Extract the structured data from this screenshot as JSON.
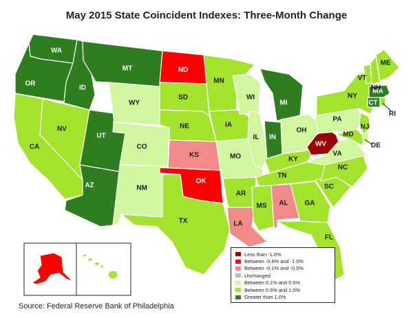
{
  "title": "May 2015 State Coincident Indexes: Three-Month Change",
  "source": "Source: Federal Reserve Bank of Philadelphia",
  "legend": [
    {
      "key": "lt_m1",
      "label": "Less than -1.0%",
      "color": "#9b0000"
    },
    {
      "key": "m06_m1",
      "label": "Between -0.6% and -1.0%",
      "color": "#ff0000"
    },
    {
      "key": "m01_m05",
      "label": "Between -0.1% and -0.5%",
      "color": "#f28a8a"
    },
    {
      "key": "unch",
      "label": "Unchanged",
      "color": "#bdbdbd"
    },
    {
      "key": "p01_p05",
      "label": "Between 0.1% and 0.5%",
      "color": "#d2f5a0"
    },
    {
      "key": "p06_p1",
      "label": "Between 0.6% and 1.0%",
      "color": "#a3e22d"
    },
    {
      "key": "gt_p1",
      "label": "Greater than 1.0%",
      "color": "#2e7d1f"
    }
  ],
  "states": [
    {
      "abbr": "WA",
      "category": "gt_p1"
    },
    {
      "abbr": "OR",
      "category": "gt_p1"
    },
    {
      "abbr": "ID",
      "category": "gt_p1"
    },
    {
      "abbr": "MT",
      "category": "gt_p1"
    },
    {
      "abbr": "UT",
      "category": "gt_p1"
    },
    {
      "abbr": "AZ",
      "category": "gt_p1"
    },
    {
      "abbr": "MI",
      "category": "gt_p1"
    },
    {
      "abbr": "IN",
      "category": "gt_p1"
    },
    {
      "abbr": "MA",
      "category": "gt_p1"
    },
    {
      "abbr": "CT",
      "category": "gt_p1"
    },
    {
      "abbr": "CA",
      "category": "p06_p1"
    },
    {
      "abbr": "NV",
      "category": "p06_p1"
    },
    {
      "abbr": "SD",
      "category": "p06_p1"
    },
    {
      "abbr": "NE",
      "category": "p06_p1"
    },
    {
      "abbr": "MN",
      "category": "p06_p1"
    },
    {
      "abbr": "IA",
      "category": "p06_p1"
    },
    {
      "abbr": "TX",
      "category": "p06_p1"
    },
    {
      "abbr": "AR",
      "category": "p06_p1"
    },
    {
      "abbr": "MS",
      "category": "p06_p1"
    },
    {
      "abbr": "TN",
      "category": "p06_p1"
    },
    {
      "abbr": "KY",
      "category": "p06_p1"
    },
    {
      "abbr": "GA",
      "category": "p06_p1"
    },
    {
      "abbr": "FL",
      "category": "p06_p1"
    },
    {
      "abbr": "SC",
      "category": "p06_p1"
    },
    {
      "abbr": "NC",
      "category": "p06_p1"
    },
    {
      "abbr": "NY",
      "category": "p06_p1"
    },
    {
      "abbr": "VT",
      "category": "p06_p1"
    },
    {
      "abbr": "NH",
      "category": "p06_p1"
    },
    {
      "abbr": "ME",
      "category": "p06_p1"
    },
    {
      "abbr": "NJ",
      "category": "p06_p1"
    },
    {
      "abbr": "MD",
      "category": "p06_p1"
    },
    {
      "abbr": "RI",
      "category": "p06_p1"
    },
    {
      "abbr": "HI",
      "category": "p06_p1"
    },
    {
      "abbr": "WY",
      "category": "p01_p05"
    },
    {
      "abbr": "CO",
      "category": "p01_p05"
    },
    {
      "abbr": "NM",
      "category": "p01_p05"
    },
    {
      "abbr": "MO",
      "category": "p01_p05"
    },
    {
      "abbr": "IL",
      "category": "p01_p05"
    },
    {
      "abbr": "WI",
      "category": "p01_p05"
    },
    {
      "abbr": "OH",
      "category": "p01_p05"
    },
    {
      "abbr": "PA",
      "category": "p01_p05"
    },
    {
      "abbr": "VA",
      "category": "p01_p05"
    },
    {
      "abbr": "DE",
      "category": "p01_p05"
    },
    {
      "abbr": "KS",
      "category": "m01_m05"
    },
    {
      "abbr": "LA",
      "category": "m01_m05"
    },
    {
      "abbr": "AL",
      "category": "m01_m05"
    },
    {
      "abbr": "ND",
      "category": "m06_m1"
    },
    {
      "abbr": "OK",
      "category": "m06_m1"
    },
    {
      "abbr": "AK",
      "category": "m06_m1"
    },
    {
      "abbr": "WV",
      "category": "lt_m1"
    }
  ]
}
